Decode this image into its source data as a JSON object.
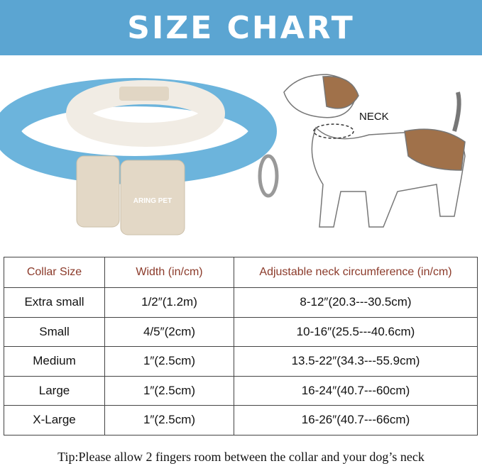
{
  "title": "SIZE CHART",
  "brand_label": "ARING PET",
  "neck_label": "NECK",
  "colors": {
    "banner": "#5ba5d2",
    "header_text": "#8b3a2a",
    "collar": "#6cb4dc"
  },
  "table": {
    "headers": [
      "Collar Size",
      "Width (in/cm)",
      "Adjustable neck circumference (in/cm)"
    ],
    "rows": [
      [
        "Extra small",
        "1/2″(1.2m)",
        "8-12″(20.3---30.5cm)"
      ],
      [
        "Small",
        "4/5″(2cm)",
        "10-16″(25.5---40.6cm)"
      ],
      [
        "Medium",
        "1″(2.5cm)",
        "13.5-22″(34.3---55.9cm)"
      ],
      [
        "Large",
        "1″(2.5cm)",
        "16-24″(40.7---60cm)"
      ],
      [
        "X-Large",
        "1″(2.5cm)",
        "16-26″(40.7---66cm)"
      ]
    ]
  },
  "tip": "Tip:Please allow 2 fingers room between the collar and your dog’s neck"
}
